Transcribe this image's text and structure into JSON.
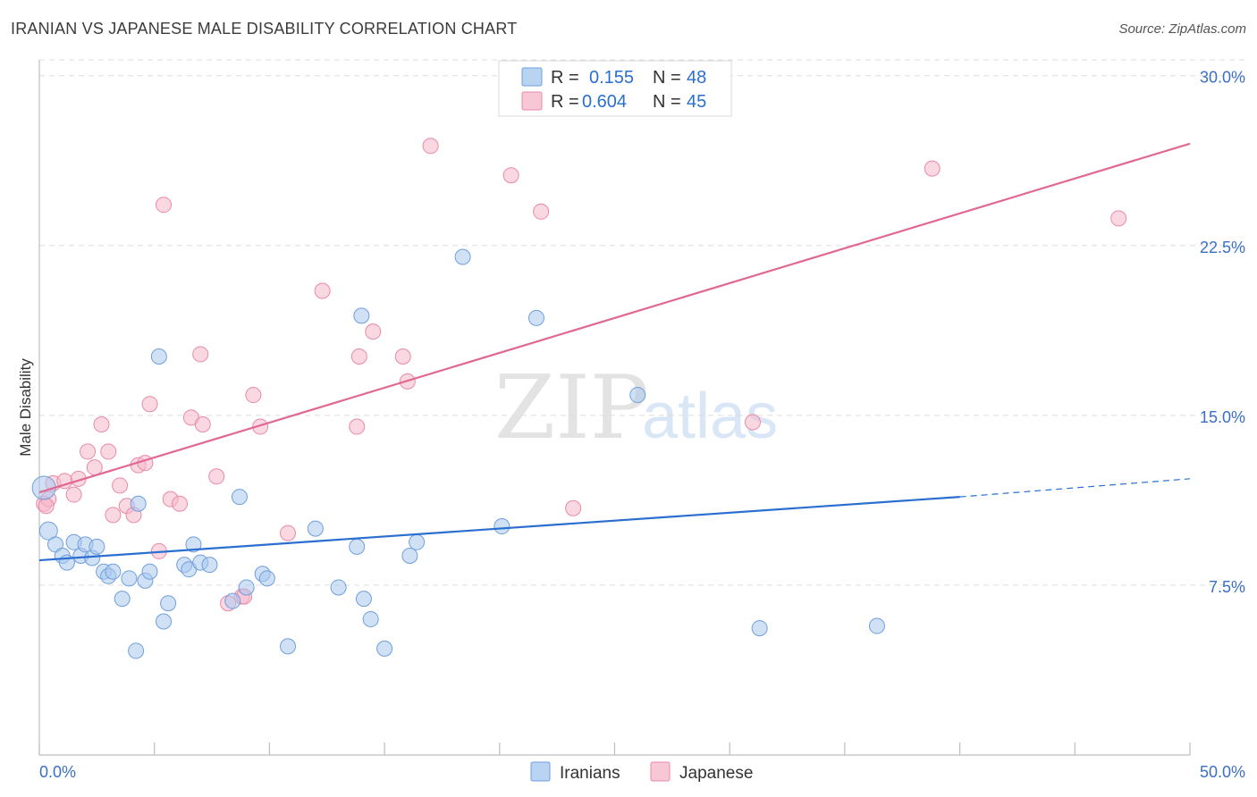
{
  "title": "IRANIAN VS JAPANESE MALE DISABILITY CORRELATION CHART",
  "source": "Source: ZipAtlas.com",
  "watermark": {
    "zip": "ZIP",
    "atlas": "atlas"
  },
  "legend": {
    "rows": [
      {
        "r_label": "R =",
        "r_value": "0.155",
        "n_label": "N =",
        "n_value": "48"
      },
      {
        "r_label": "R =",
        "r_value": "0.604",
        "n_label": "N =",
        "n_value": "45"
      }
    ]
  },
  "bottom_legend": [
    "Iranians",
    "Japanese"
  ],
  "colors": {
    "iranian_fill": "#a9c8ef",
    "iranian_stroke": "#6f9fdc",
    "iranian_line": "#2a6fcf",
    "japanese_fill": "#f6b8cb",
    "japanese_stroke": "#e98aa8",
    "japanese_line": "#e06893",
    "tick_text": "#3a6fc6",
    "grid": "#dddddd"
  },
  "chart_data": {
    "type": "scatter",
    "title": "IRANIAN VS JAPANESE MALE DISABILITY CORRELATION CHART",
    "xlabel": "",
    "ylabel": "Male Disability",
    "xlim": [
      0,
      50
    ],
    "ylim": [
      0,
      30.7
    ],
    "x_tick_labels": [
      "0.0%",
      "50.0%"
    ],
    "y_ticks": [
      7.5,
      15.0,
      22.5,
      30.0
    ],
    "y_tick_labels": [
      "7.5%",
      "15.0%",
      "22.5%",
      "30.0%"
    ],
    "series": [
      {
        "name": "Iranians",
        "r": 0.155,
        "n": 48,
        "trend": {
          "x0": 0,
          "y0": 8.6,
          "x1": 40,
          "y1": 11.4,
          "dash_to_x": 50,
          "dash_to_y": 12.2
        },
        "points": [
          [
            0.2,
            11.8
          ],
          [
            0.4,
            9.9
          ],
          [
            0.7,
            9.3
          ],
          [
            1.0,
            8.8
          ],
          [
            1.2,
            8.5
          ],
          [
            1.5,
            9.4
          ],
          [
            1.8,
            8.8
          ],
          [
            2.0,
            9.3
          ],
          [
            2.3,
            8.7
          ],
          [
            2.5,
            9.2
          ],
          [
            2.8,
            8.1
          ],
          [
            3.0,
            7.9
          ],
          [
            3.2,
            8.1
          ],
          [
            3.6,
            6.9
          ],
          [
            3.9,
            7.8
          ],
          [
            4.2,
            4.6
          ],
          [
            4.3,
            11.1
          ],
          [
            4.6,
            7.7
          ],
          [
            4.8,
            8.1
          ],
          [
            5.2,
            17.6
          ],
          [
            5.4,
            5.9
          ],
          [
            5.6,
            6.7
          ],
          [
            6.3,
            8.4
          ],
          [
            6.5,
            8.2
          ],
          [
            6.7,
            9.3
          ],
          [
            7.0,
            8.5
          ],
          [
            7.4,
            8.4
          ],
          [
            8.4,
            6.8
          ],
          [
            8.7,
            11.4
          ],
          [
            9.0,
            7.4
          ],
          [
            9.7,
            8.0
          ],
          [
            9.9,
            7.8
          ],
          [
            10.8,
            4.8
          ],
          [
            12.0,
            10.0
          ],
          [
            13.0,
            7.4
          ],
          [
            13.8,
            9.2
          ],
          [
            14.0,
            19.4
          ],
          [
            14.1,
            6.9
          ],
          [
            14.4,
            6.0
          ],
          [
            15.0,
            4.7
          ],
          [
            16.1,
            8.8
          ],
          [
            16.4,
            9.4
          ],
          [
            18.4,
            22.0
          ],
          [
            20.1,
            10.1
          ],
          [
            21.6,
            19.3
          ],
          [
            26.0,
            15.9
          ],
          [
            31.3,
            5.6
          ],
          [
            36.4,
            5.7
          ]
        ]
      },
      {
        "name": "Japanese",
        "r": 0.604,
        "n": 45,
        "trend": {
          "x0": 0,
          "y0": 11.6,
          "x1": 50,
          "y1": 27.0
        },
        "points": [
          [
            0.2,
            11.1
          ],
          [
            0.4,
            11.3
          ],
          [
            0.6,
            12.0
          ],
          [
            1.1,
            12.1
          ],
          [
            1.5,
            11.5
          ],
          [
            1.7,
            12.2
          ],
          [
            2.1,
            13.4
          ],
          [
            2.4,
            12.7
          ],
          [
            2.7,
            14.6
          ],
          [
            3.0,
            13.4
          ],
          [
            3.2,
            10.6
          ],
          [
            3.5,
            11.9
          ],
          [
            3.8,
            11.0
          ],
          [
            4.1,
            10.6
          ],
          [
            4.3,
            12.8
          ],
          [
            4.6,
            12.9
          ],
          [
            4.8,
            15.5
          ],
          [
            5.2,
            9.0
          ],
          [
            5.4,
            24.3
          ],
          [
            5.7,
            11.3
          ],
          [
            6.1,
            11.1
          ],
          [
            6.6,
            14.9
          ],
          [
            7.0,
            17.7
          ],
          [
            7.1,
            14.6
          ],
          [
            7.7,
            12.3
          ],
          [
            8.2,
            6.7
          ],
          [
            8.8,
            7.0
          ],
          [
            8.9,
            7.0
          ],
          [
            9.3,
            15.9
          ],
          [
            9.6,
            14.5
          ],
          [
            10.8,
            9.8
          ],
          [
            12.3,
            20.5
          ],
          [
            13.8,
            14.5
          ],
          [
            13.9,
            17.6
          ],
          [
            14.5,
            18.7
          ],
          [
            15.8,
            17.6
          ],
          [
            16.0,
            16.5
          ],
          [
            17.0,
            26.9
          ],
          [
            20.5,
            25.6
          ],
          [
            21.8,
            24.0
          ],
          [
            23.2,
            10.9
          ],
          [
            31.0,
            14.7
          ],
          [
            38.8,
            25.9
          ],
          [
            46.9,
            23.7
          ],
          [
            0.3,
            11.0
          ]
        ]
      }
    ]
  }
}
